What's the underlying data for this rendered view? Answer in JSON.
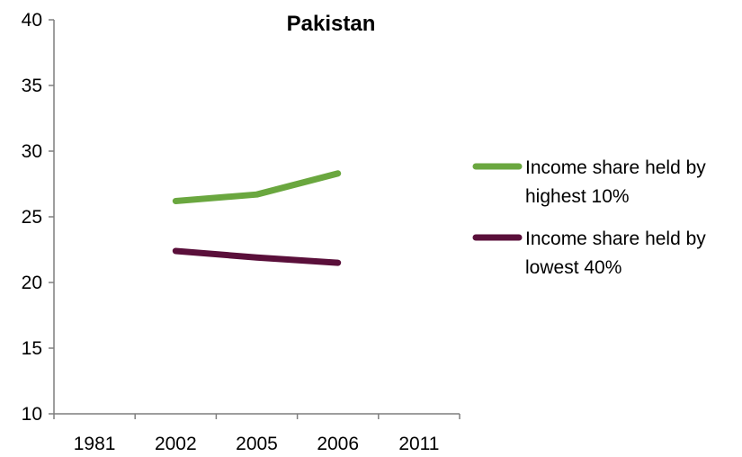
{
  "chart_data": {
    "type": "line",
    "title": "Pakistan",
    "xlabel": "",
    "ylabel": "",
    "categories": [
      "1981",
      "2002",
      "2005",
      "2006",
      "2011"
    ],
    "yticks": [
      "10",
      "15",
      "20",
      "25",
      "30",
      "35",
      "40"
    ],
    "ylim": [
      10,
      40
    ],
    "grid": false,
    "legend_position": "right",
    "series": [
      {
        "name": "Income share held by highest 10%",
        "legend_lines": [
          "Income share held by",
          "highest 10%"
        ],
        "color": "#6aa73f",
        "values": [
          null,
          26.2,
          26.7,
          28.3,
          null
        ]
      },
      {
        "name": "Income share held by lowest 40%",
        "legend_lines": [
          "Income share held by",
          "lowest 40%"
        ],
        "color": "#5a0f3a",
        "values": [
          null,
          22.4,
          21.9,
          21.5,
          null
        ]
      }
    ]
  }
}
